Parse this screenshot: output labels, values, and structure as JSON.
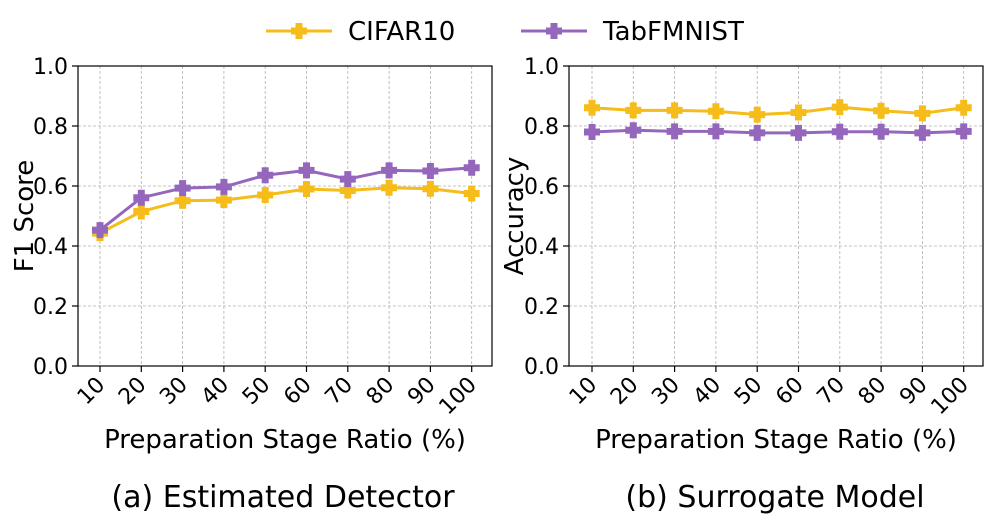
{
  "legend": [
    {
      "name": "CIFAR10",
      "color": "#F5BC1A"
    },
    {
      "name": "TabFMNIST",
      "color": "#9467BD"
    }
  ],
  "chart_data": [
    {
      "type": "line",
      "caption": "(a) Estimated Detector",
      "xlabel": "Preparation Stage Ratio (%)",
      "ylabel": "F1 Score",
      "x": [
        "10",
        "20",
        "30",
        "40",
        "50",
        "60",
        "70",
        "80",
        "90",
        "100"
      ],
      "ylim": [
        0.0,
        1.0
      ],
      "yticks": [
        "0.0",
        "0.2",
        "0.4",
        "0.6",
        "0.8",
        "1.0"
      ],
      "grid": true,
      "series": [
        {
          "name": "CIFAR10",
          "color": "#F5BC1A",
          "values": [
            0.443,
            0.515,
            0.551,
            0.553,
            0.57,
            0.59,
            0.585,
            0.594,
            0.591,
            0.575
          ]
        },
        {
          "name": "TabFMNIST",
          "color": "#9467BD",
          "values": [
            0.453,
            0.561,
            0.593,
            0.597,
            0.636,
            0.652,
            0.623,
            0.652,
            0.65,
            0.661
          ]
        }
      ]
    },
    {
      "type": "line",
      "caption": "(b) Surrogate Model",
      "xlabel": "Preparation Stage Ratio (%)",
      "ylabel": "Accuracy",
      "x": [
        "10",
        "20",
        "30",
        "40",
        "50",
        "60",
        "70",
        "80",
        "90",
        "100"
      ],
      "ylim": [
        0.0,
        1.0
      ],
      "yticks": [
        "0.0",
        "0.2",
        "0.4",
        "0.6",
        "0.8",
        "1.0"
      ],
      "grid": true,
      "series": [
        {
          "name": "CIFAR10",
          "color": "#F5BC1A",
          "values": [
            0.861,
            0.852,
            0.852,
            0.849,
            0.838,
            0.845,
            0.863,
            0.851,
            0.842,
            0.861
          ]
        },
        {
          "name": "TabFMNIST",
          "color": "#9467BD",
          "values": [
            0.78,
            0.786,
            0.782,
            0.782,
            0.777,
            0.777,
            0.781,
            0.781,
            0.777,
            0.782
          ]
        }
      ]
    }
  ]
}
